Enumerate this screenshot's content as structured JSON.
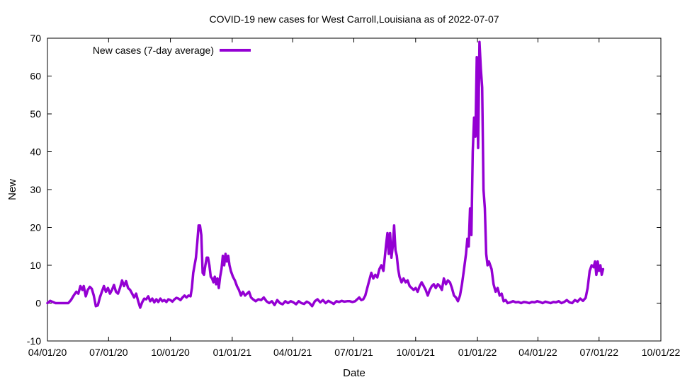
{
  "chart_data": {
    "type": "line",
    "title": "COVID-19 new cases for West Carroll,Louisiana as of 2022-07-07",
    "xlabel": "Date",
    "ylabel": "New",
    "xlim": [
      "2020-04-01",
      "2022-10-01"
    ],
    "ylim": [
      -10,
      70
    ],
    "x_ticks": [
      {
        "date": "2020-04-01",
        "label": "04/01/20"
      },
      {
        "date": "2020-07-01",
        "label": "07/01/20"
      },
      {
        "date": "2020-10-01",
        "label": "10/01/20"
      },
      {
        "date": "2021-01-01",
        "label": "01/01/21"
      },
      {
        "date": "2021-04-01",
        "label": "04/01/21"
      },
      {
        "date": "2021-07-01",
        "label": "07/01/21"
      },
      {
        "date": "2021-10-01",
        "label": "10/01/21"
      },
      {
        "date": "2022-01-01",
        "label": "01/01/22"
      },
      {
        "date": "2022-04-01",
        "label": "04/01/22"
      },
      {
        "date": "2022-07-01",
        "label": "07/01/22"
      },
      {
        "date": "2022-10-01",
        "label": "10/01/22"
      }
    ],
    "y_ticks": [
      -10,
      0,
      10,
      20,
      30,
      40,
      50,
      60,
      70
    ],
    "grid": false,
    "legend_position": "top-left",
    "series": [
      {
        "name": "New cases (7-day average)",
        "color": "#9400d3",
        "points": [
          [
            "2020-04-01",
            0.0
          ],
          [
            "2020-04-05",
            0.6
          ],
          [
            "2020-04-09",
            0.3
          ],
          [
            "2020-04-13",
            0.0
          ],
          [
            "2020-04-20",
            0.0
          ],
          [
            "2020-04-27",
            0.0
          ],
          [
            "2020-05-02",
            0.0
          ],
          [
            "2020-05-06",
            0.8
          ],
          [
            "2020-05-10",
            2.0
          ],
          [
            "2020-05-14",
            3.0
          ],
          [
            "2020-05-17",
            2.5
          ],
          [
            "2020-05-20",
            4.5
          ],
          [
            "2020-05-23",
            3.5
          ],
          [
            "2020-05-25",
            4.5
          ],
          [
            "2020-05-28",
            1.8
          ],
          [
            "2020-05-31",
            3.5
          ],
          [
            "2020-06-03",
            4.3
          ],
          [
            "2020-06-06",
            3.8
          ],
          [
            "2020-06-09",
            2.0
          ],
          [
            "2020-06-12",
            -0.8
          ],
          [
            "2020-06-15",
            -0.6
          ],
          [
            "2020-06-18",
            1.5
          ],
          [
            "2020-06-21",
            3.0
          ],
          [
            "2020-06-24",
            4.5
          ],
          [
            "2020-06-27",
            3.0
          ],
          [
            "2020-06-30",
            4.0
          ],
          [
            "2020-07-03",
            2.5
          ],
          [
            "2020-07-06",
            3.5
          ],
          [
            "2020-07-09",
            4.8
          ],
          [
            "2020-07-12",
            3.0
          ],
          [
            "2020-07-15",
            2.5
          ],
          [
            "2020-07-18",
            4.0
          ],
          [
            "2020-07-21",
            6.0
          ],
          [
            "2020-07-24",
            4.5
          ],
          [
            "2020-07-27",
            5.8
          ],
          [
            "2020-07-30",
            4.0
          ],
          [
            "2020-08-02",
            3.5
          ],
          [
            "2020-08-05",
            2.5
          ],
          [
            "2020-08-08",
            1.5
          ],
          [
            "2020-08-11",
            2.5
          ],
          [
            "2020-08-14",
            0.5
          ],
          [
            "2020-08-17",
            -1.2
          ],
          [
            "2020-08-20",
            0.2
          ],
          [
            "2020-08-23",
            1.2
          ],
          [
            "2020-08-26",
            1.0
          ],
          [
            "2020-08-29",
            1.8
          ],
          [
            "2020-09-01",
            0.5
          ],
          [
            "2020-09-04",
            1.2
          ],
          [
            "2020-09-07",
            0.2
          ],
          [
            "2020-09-10",
            1.0
          ],
          [
            "2020-09-13",
            0.3
          ],
          [
            "2020-09-16",
            1.2
          ],
          [
            "2020-09-19",
            0.5
          ],
          [
            "2020-09-22",
            0.8
          ],
          [
            "2020-09-25",
            0.3
          ],
          [
            "2020-09-28",
            1.0
          ],
          [
            "2020-10-01",
            0.8
          ],
          [
            "2020-10-04",
            0.4
          ],
          [
            "2020-10-07",
            1.0
          ],
          [
            "2020-10-10",
            1.4
          ],
          [
            "2020-10-13",
            1.2
          ],
          [
            "2020-10-16",
            0.8
          ],
          [
            "2020-10-19",
            1.5
          ],
          [
            "2020-10-22",
            2.0
          ],
          [
            "2020-10-25",
            1.5
          ],
          [
            "2020-10-28",
            2.0
          ],
          [
            "2020-10-31",
            1.8
          ],
          [
            "2020-11-02",
            4.0
          ],
          [
            "2020-11-04",
            8.0
          ],
          [
            "2020-11-06",
            10.0
          ],
          [
            "2020-11-08",
            12.0
          ],
          [
            "2020-11-10",
            16.0
          ],
          [
            "2020-11-12",
            20.5
          ],
          [
            "2020-11-14",
            20.5
          ],
          [
            "2020-11-16",
            18.0
          ],
          [
            "2020-11-18",
            8.0
          ],
          [
            "2020-11-20",
            7.5
          ],
          [
            "2020-11-22",
            10.0
          ],
          [
            "2020-11-24",
            12.0
          ],
          [
            "2020-11-26",
            12.0
          ],
          [
            "2020-11-28",
            10.0
          ],
          [
            "2020-11-30",
            7.0
          ],
          [
            "2020-12-02",
            6.5
          ],
          [
            "2020-12-04",
            5.5
          ],
          [
            "2020-12-06",
            7.0
          ],
          [
            "2020-12-08",
            5.0
          ],
          [
            "2020-12-10",
            6.5
          ],
          [
            "2020-12-12",
            4.0
          ],
          [
            "2020-12-14",
            7.0
          ],
          [
            "2020-12-16",
            9.0
          ],
          [
            "2020-12-18",
            12.5
          ],
          [
            "2020-12-20",
            10.0
          ],
          [
            "2020-12-22",
            13.0
          ],
          [
            "2020-12-24",
            11.0
          ],
          [
            "2020-12-26",
            12.5
          ],
          [
            "2020-12-28",
            10.0
          ],
          [
            "2020-12-30",
            8.5
          ],
          [
            "2021-01-02",
            7.0
          ],
          [
            "2021-01-05",
            6.0
          ],
          [
            "2021-01-08",
            4.5
          ],
          [
            "2021-01-11",
            3.5
          ],
          [
            "2021-01-14",
            2.0
          ],
          [
            "2021-01-17",
            3.0
          ],
          [
            "2021-01-20",
            2.0
          ],
          [
            "2021-01-23",
            2.5
          ],
          [
            "2021-01-26",
            3.0
          ],
          [
            "2021-01-29",
            1.5
          ],
          [
            "2021-02-01",
            1.0
          ],
          [
            "2021-02-05",
            0.5
          ],
          [
            "2021-02-09",
            1.0
          ],
          [
            "2021-02-13",
            0.8
          ],
          [
            "2021-02-17",
            1.5
          ],
          [
            "2021-02-21",
            0.5
          ],
          [
            "2021-02-25",
            0.0
          ],
          [
            "2021-03-01",
            0.5
          ],
          [
            "2021-03-05",
            -0.5
          ],
          [
            "2021-03-09",
            0.8
          ],
          [
            "2021-03-13",
            0.0
          ],
          [
            "2021-03-17",
            -0.3
          ],
          [
            "2021-03-21",
            0.5
          ],
          [
            "2021-03-25",
            0.0
          ],
          [
            "2021-03-29",
            0.5
          ],
          [
            "2021-04-02",
            0.2
          ],
          [
            "2021-04-06",
            -0.3
          ],
          [
            "2021-04-10",
            0.5
          ],
          [
            "2021-04-14",
            0.0
          ],
          [
            "2021-04-18",
            -0.2
          ],
          [
            "2021-04-22",
            0.4
          ],
          [
            "2021-04-26",
            0.0
          ],
          [
            "2021-04-30",
            -0.8
          ],
          [
            "2021-05-04",
            0.5
          ],
          [
            "2021-05-08",
            1.0
          ],
          [
            "2021-05-12",
            0.2
          ],
          [
            "2021-05-16",
            0.8
          ],
          [
            "2021-05-20",
            0.0
          ],
          [
            "2021-05-24",
            0.6
          ],
          [
            "2021-05-28",
            0.2
          ],
          [
            "2021-06-01",
            -0.2
          ],
          [
            "2021-06-05",
            0.5
          ],
          [
            "2021-06-09",
            0.3
          ],
          [
            "2021-06-13",
            0.6
          ],
          [
            "2021-06-17",
            0.4
          ],
          [
            "2021-06-21",
            0.5
          ],
          [
            "2021-06-25",
            0.5
          ],
          [
            "2021-06-29",
            0.3
          ],
          [
            "2021-07-03",
            0.5
          ],
          [
            "2021-07-06",
            1.0
          ],
          [
            "2021-07-09",
            1.5
          ],
          [
            "2021-07-12",
            0.8
          ],
          [
            "2021-07-15",
            1.0
          ],
          [
            "2021-07-18",
            2.0
          ],
          [
            "2021-07-21",
            4.0
          ],
          [
            "2021-07-24",
            6.0
          ],
          [
            "2021-07-27",
            8.0
          ],
          [
            "2021-07-30",
            6.5
          ],
          [
            "2021-08-02",
            7.5
          ],
          [
            "2021-08-05",
            6.8
          ],
          [
            "2021-08-08",
            9.0
          ],
          [
            "2021-08-11",
            10.0
          ],
          [
            "2021-08-14",
            8.5
          ],
          [
            "2021-08-16",
            12.0
          ],
          [
            "2021-08-18",
            15.5
          ],
          [
            "2021-08-20",
            18.5
          ],
          [
            "2021-08-22",
            13.0
          ],
          [
            "2021-08-24",
            18.5
          ],
          [
            "2021-08-26",
            12.0
          ],
          [
            "2021-08-28",
            15.0
          ],
          [
            "2021-08-30",
            20.5
          ],
          [
            "2021-09-01",
            14.0
          ],
          [
            "2021-09-03",
            12.5
          ],
          [
            "2021-09-05",
            9.0
          ],
          [
            "2021-09-07",
            7.0
          ],
          [
            "2021-09-10",
            5.5
          ],
          [
            "2021-09-13",
            6.5
          ],
          [
            "2021-09-16",
            5.5
          ],
          [
            "2021-09-19",
            6.0
          ],
          [
            "2021-09-22",
            4.5
          ],
          [
            "2021-09-25",
            4.0
          ],
          [
            "2021-09-28",
            3.5
          ],
          [
            "2021-10-01",
            4.0
          ],
          [
            "2021-10-04",
            3.0
          ],
          [
            "2021-10-07",
            4.5
          ],
          [
            "2021-10-10",
            5.5
          ],
          [
            "2021-10-13",
            4.5
          ],
          [
            "2021-10-16",
            3.5
          ],
          [
            "2021-10-19",
            2.0
          ],
          [
            "2021-10-22",
            3.5
          ],
          [
            "2021-10-25",
            4.5
          ],
          [
            "2021-10-28",
            5.0
          ],
          [
            "2021-10-31",
            4.0
          ],
          [
            "2021-11-03",
            5.0
          ],
          [
            "2021-11-06",
            4.5
          ],
          [
            "2021-11-09",
            3.5
          ],
          [
            "2021-11-12",
            6.5
          ],
          [
            "2021-11-15",
            5.0
          ],
          [
            "2021-11-18",
            6.0
          ],
          [
            "2021-11-21",
            5.5
          ],
          [
            "2021-11-24",
            4.0
          ],
          [
            "2021-11-27",
            2.0
          ],
          [
            "2021-11-30",
            1.5
          ],
          [
            "2021-12-03",
            0.5
          ],
          [
            "2021-12-06",
            2.0
          ],
          [
            "2021-12-09",
            5.0
          ],
          [
            "2021-12-12",
            9.0
          ],
          [
            "2021-12-15",
            13.0
          ],
          [
            "2021-12-17",
            17.0
          ],
          [
            "2021-12-19",
            15.0
          ],
          [
            "2021-12-21",
            25.0
          ],
          [
            "2021-12-23",
            18.0
          ],
          [
            "2021-12-25",
            40.0
          ],
          [
            "2021-12-27",
            49.0
          ],
          [
            "2021-12-29",
            44.0
          ],
          [
            "2021-12-31",
            65.0
          ],
          [
            "2022-01-02",
            41.0
          ],
          [
            "2022-01-04",
            69.0
          ],
          [
            "2022-01-06",
            62.0
          ],
          [
            "2022-01-08",
            57.0
          ],
          [
            "2022-01-10",
            30.0
          ],
          [
            "2022-01-12",
            25.0
          ],
          [
            "2022-01-14",
            13.0
          ],
          [
            "2022-01-16",
            10.0
          ],
          [
            "2022-01-18",
            11.0
          ],
          [
            "2022-01-20",
            10.0
          ],
          [
            "2022-01-22",
            9.0
          ],
          [
            "2022-01-25",
            5.0
          ],
          [
            "2022-01-28",
            3.0
          ],
          [
            "2022-01-31",
            4.0
          ],
          [
            "2022-02-03",
            2.0
          ],
          [
            "2022-02-06",
            2.5
          ],
          [
            "2022-02-09",
            0.5
          ],
          [
            "2022-02-12",
            0.8
          ],
          [
            "2022-02-15",
            0.0
          ],
          [
            "2022-02-19",
            0.2
          ],
          [
            "2022-02-23",
            0.5
          ],
          [
            "2022-02-27",
            0.2
          ],
          [
            "2022-03-03",
            0.3
          ],
          [
            "2022-03-07",
            0.0
          ],
          [
            "2022-03-11",
            0.3
          ],
          [
            "2022-03-15",
            0.2
          ],
          [
            "2022-03-19",
            0.0
          ],
          [
            "2022-03-23",
            0.3
          ],
          [
            "2022-03-27",
            0.2
          ],
          [
            "2022-03-31",
            0.5
          ],
          [
            "2022-04-04",
            0.3
          ],
          [
            "2022-04-08",
            0.0
          ],
          [
            "2022-04-12",
            0.4
          ],
          [
            "2022-04-16",
            0.2
          ],
          [
            "2022-04-20",
            0.0
          ],
          [
            "2022-04-24",
            0.3
          ],
          [
            "2022-04-28",
            0.2
          ],
          [
            "2022-05-02",
            0.5
          ],
          [
            "2022-05-06",
            0.0
          ],
          [
            "2022-05-10",
            0.3
          ],
          [
            "2022-05-14",
            0.8
          ],
          [
            "2022-05-18",
            0.2
          ],
          [
            "2022-05-22",
            0.0
          ],
          [
            "2022-05-26",
            0.8
          ],
          [
            "2022-05-30",
            0.4
          ],
          [
            "2022-06-03",
            1.2
          ],
          [
            "2022-06-07",
            0.6
          ],
          [
            "2022-06-11",
            1.4
          ],
          [
            "2022-06-14",
            4.0
          ],
          [
            "2022-06-17",
            8.5
          ],
          [
            "2022-06-20",
            10.0
          ],
          [
            "2022-06-23",
            9.5
          ],
          [
            "2022-06-25",
            11.0
          ],
          [
            "2022-06-27",
            7.5
          ],
          [
            "2022-06-29",
            11.0
          ],
          [
            "2022-07-01",
            8.5
          ],
          [
            "2022-07-03",
            10.0
          ],
          [
            "2022-07-05",
            7.5
          ],
          [
            "2022-07-07",
            9.0
          ]
        ]
      }
    ]
  }
}
